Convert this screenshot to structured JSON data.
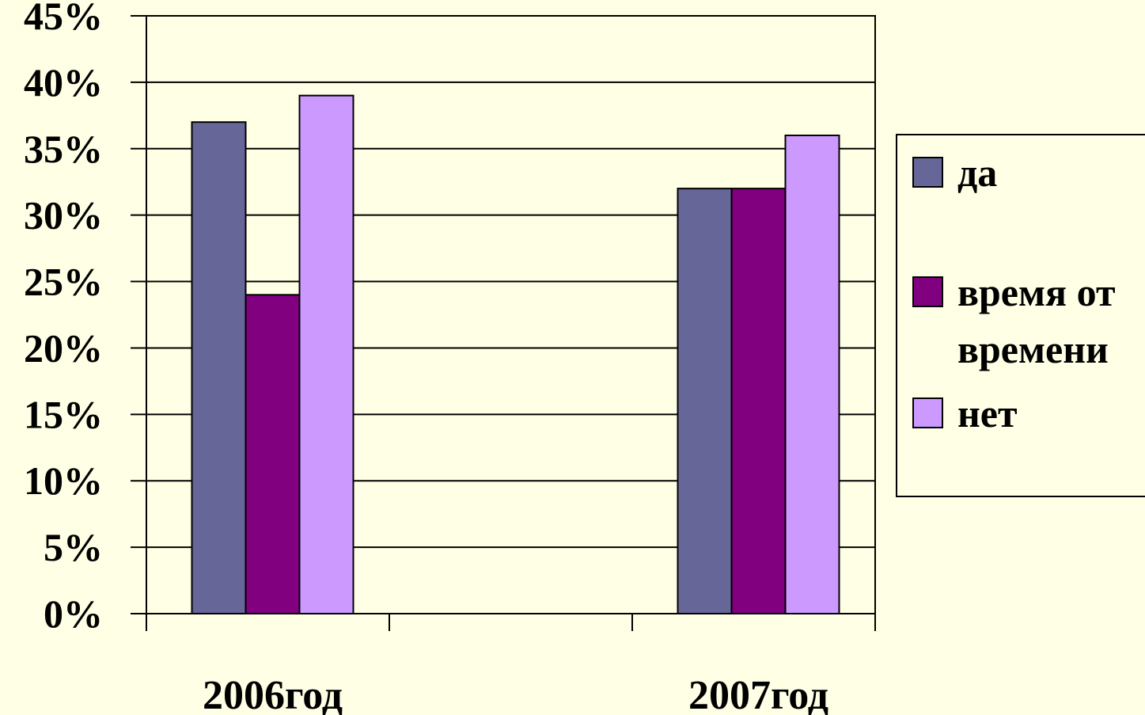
{
  "chart_data": {
    "type": "bar",
    "categories": [
      "2006год",
      "2007год"
    ],
    "series": [
      {
        "name": "да",
        "values": [
          37,
          32
        ],
        "color": "#666699"
      },
      {
        "name": "время от времени",
        "values": [
          24,
          32
        ],
        "color": "#800080"
      },
      {
        "name": "нет",
        "values": [
          39,
          36
        ],
        "color": "#CC99FF"
      }
    ],
    "legend_lines": [
      [
        "да"
      ],
      [
        "время от",
        "времени"
      ],
      [
        "нет"
      ]
    ],
    "yticks": [
      "0%",
      "5%",
      "10%",
      "15%",
      "20%",
      "25%",
      "30%",
      "35%",
      "40%",
      "45%"
    ],
    "ylim": [
      0,
      45
    ],
    "y_unit": "%",
    "grid": true,
    "legend_position": "right",
    "background_color": "#FFFFE5"
  }
}
